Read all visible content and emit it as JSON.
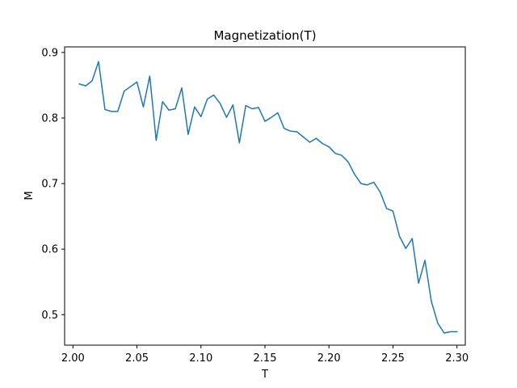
{
  "chart_data": {
    "type": "line",
    "title": "Magnetization(T)",
    "xlabel": "T",
    "ylabel": "M",
    "xlim": [
      1.9935,
      2.3065
    ],
    "ylim": [
      0.4535,
      0.9085
    ],
    "xticks": [
      2.0,
      2.05,
      2.1,
      2.15,
      2.2,
      2.25,
      2.3
    ],
    "xtick_labels": [
      "2.00",
      "2.05",
      "2.10",
      "2.15",
      "2.20",
      "2.25",
      "2.30"
    ],
    "yticks": [
      0.5,
      0.6,
      0.7,
      0.8,
      0.9
    ],
    "ytick_labels": [
      "0.5",
      "0.6",
      "0.7",
      "0.8",
      "0.9"
    ],
    "grid": false,
    "line_color": "#1f77b4",
    "x": [
      2.005,
      2.01,
      2.015,
      2.02,
      2.025,
      2.03,
      2.035,
      2.04,
      2.045,
      2.05,
      2.055,
      2.06,
      2.065,
      2.07,
      2.075,
      2.08,
      2.085,
      2.09,
      2.095,
      2.1,
      2.105,
      2.11,
      2.115,
      2.12,
      2.125,
      2.13,
      2.135,
      2.14,
      2.145,
      2.15,
      2.155,
      2.16,
      2.165,
      2.17,
      2.175,
      2.18,
      2.185,
      2.19,
      2.195,
      2.2,
      2.205,
      2.21,
      2.215,
      2.22,
      2.225,
      2.23,
      2.235,
      2.24,
      2.245,
      2.25,
      2.255,
      2.26,
      2.265,
      2.27,
      2.275,
      2.28,
      2.285,
      2.29,
      2.295,
      2.3
    ],
    "y": [
      0.852,
      0.849,
      0.857,
      0.886,
      0.813,
      0.81,
      0.81,
      0.841,
      0.848,
      0.855,
      0.817,
      0.864,
      0.766,
      0.825,
      0.812,
      0.814,
      0.846,
      0.775,
      0.817,
      0.802,
      0.829,
      0.835,
      0.822,
      0.801,
      0.82,
      0.762,
      0.819,
      0.814,
      0.816,
      0.795,
      0.801,
      0.808,
      0.784,
      0.78,
      0.779,
      0.771,
      0.763,
      0.769,
      0.761,
      0.756,
      0.746,
      0.743,
      0.733,
      0.714,
      0.7,
      0.698,
      0.702,
      0.687,
      0.662,
      0.658,
      0.62,
      0.601,
      0.616,
      0.548,
      0.583,
      0.52,
      0.487,
      0.472,
      0.474,
      0.474
    ]
  }
}
